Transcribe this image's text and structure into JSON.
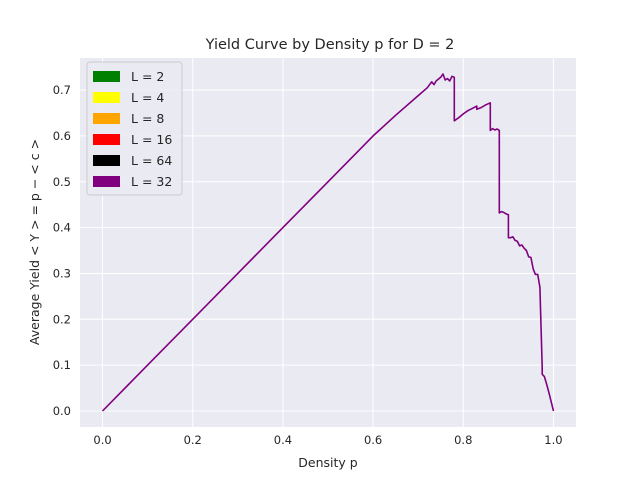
{
  "chart_data": {
    "type": "line",
    "title": "Yield Curve by Density p for D =  2",
    "xlabel": "Density p",
    "ylabel": "Average Yield  < Y > = p −  < c >",
    "xlim": [
      -0.05,
      1.05
    ],
    "ylim": [
      -0.035,
      0.77
    ],
    "xticks": [
      "0.0",
      "0.2",
      "0.4",
      "0.6",
      "0.8",
      "1.0"
    ],
    "yticks": [
      "0.0",
      "0.1",
      "0.2",
      "0.3",
      "0.4",
      "0.5",
      "0.6",
      "0.7"
    ],
    "grid": true,
    "legend_position": "top-left",
    "legend": [
      {
        "label": "L = 2",
        "color": "#008000"
      },
      {
        "label": "L = 4",
        "color": "#ffff00"
      },
      {
        "label": "L = 8",
        "color": "#ffa500"
      },
      {
        "label": "L = 16",
        "color": "#ff0000"
      },
      {
        "label": "L = 64",
        "color": "#000000"
      },
      {
        "label": "L = 32",
        "color": "#800080"
      }
    ],
    "series": [
      {
        "name": "L = 32",
        "color": "#800080",
        "x": [
          0.0,
          0.1,
          0.2,
          0.3,
          0.4,
          0.5,
          0.6,
          0.65,
          0.7,
          0.72,
          0.73,
          0.735,
          0.74,
          0.75,
          0.755,
          0.76,
          0.765,
          0.77,
          0.775,
          0.78,
          0.78,
          0.79,
          0.8,
          0.81,
          0.82,
          0.83,
          0.83,
          0.84,
          0.85,
          0.855,
          0.86,
          0.86,
          0.865,
          0.87,
          0.875,
          0.88,
          0.88,
          0.885,
          0.89,
          0.895,
          0.9,
          0.9,
          0.905,
          0.91,
          0.915,
          0.92,
          0.925,
          0.93,
          0.935,
          0.94,
          0.945,
          0.95,
          0.955,
          0.96,
          0.965,
          0.97,
          0.975,
          0.975,
          0.98,
          0.985,
          0.99,
          0.995,
          1.0
        ],
        "y": [
          0.0,
          0.1,
          0.2,
          0.3,
          0.4,
          0.5,
          0.6,
          0.645,
          0.688,
          0.705,
          0.718,
          0.712,
          0.72,
          0.728,
          0.735,
          0.722,
          0.725,
          0.72,
          0.73,
          0.728,
          0.633,
          0.64,
          0.648,
          0.655,
          0.66,
          0.665,
          0.658,
          0.662,
          0.668,
          0.67,
          0.672,
          0.612,
          0.616,
          0.613,
          0.615,
          0.612,
          0.432,
          0.435,
          0.433,
          0.43,
          0.428,
          0.378,
          0.378,
          0.38,
          0.372,
          0.37,
          0.36,
          0.362,
          0.355,
          0.35,
          0.336,
          0.335,
          0.31,
          0.298,
          0.298,
          0.27,
          0.095,
          0.08,
          0.075,
          0.058,
          0.04,
          0.02,
          0.0
        ]
      }
    ]
  }
}
